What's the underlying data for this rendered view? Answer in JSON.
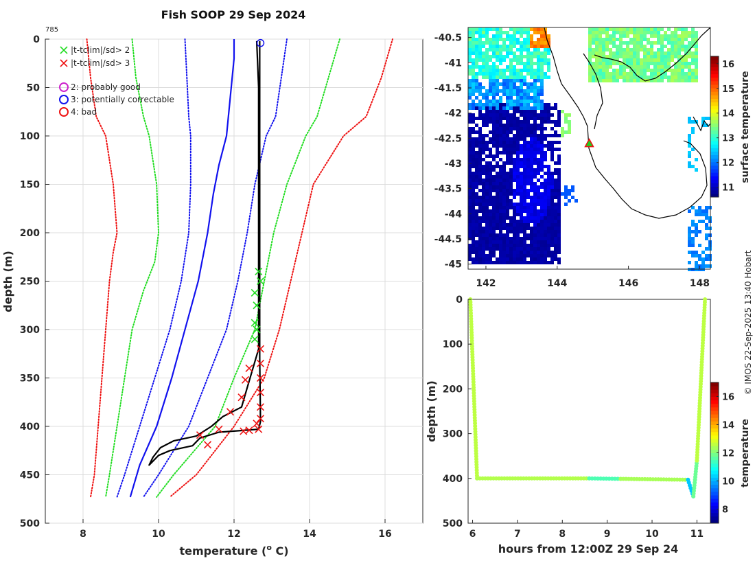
{
  "title": "Fish SOOP 29 Sep 2024",
  "profile_id": "785",
  "credit": "© IMOS 22-Sep-2025 13:40 Hobart",
  "legend": [
    {
      "marker": "x",
      "color": "#22dd22",
      "label": "|t-tclim|/sd> 2"
    },
    {
      "marker": "x",
      "color": "#ee1111",
      "label": "|t-tclim|/sd> 3"
    },
    {
      "marker": "o",
      "color": "#cc22cc",
      "label": "2: probably good"
    },
    {
      "marker": "o",
      "color": "#1111ee",
      "label": "3: potentially correctable"
    },
    {
      "marker": "o",
      "color": "#ee1111",
      "label": "4: bad"
    }
  ],
  "chart_data": [
    {
      "type": "line",
      "name": "profile",
      "xlabel": "temperature (",
      "xlabel_sup": "o",
      "xlabel_end": " C)",
      "ylabel": "depth (m)",
      "xlim": [
        7,
        17
      ],
      "ylim": [
        0,
        500
      ],
      "y_reversed": true,
      "xticks": [
        "8",
        "10",
        "12",
        "14",
        "16"
      ],
      "yticks": [
        "0",
        "50",
        "100",
        "150",
        "200",
        "250",
        "300",
        "350",
        "400",
        "450",
        "500"
      ],
      "grid": true,
      "series": [
        {
          "name": "climatology -3sd",
          "color": "#ee1111",
          "style": "dotted",
          "points": [
            [
              8.1,
              0
            ],
            [
              8.2,
              40
            ],
            [
              8.35,
              80
            ],
            [
              8.6,
              100
            ],
            [
              8.8,
              150
            ],
            [
              8.9,
              200
            ],
            [
              8.8,
              220
            ],
            [
              8.7,
              250
            ],
            [
              8.6,
              300
            ],
            [
              8.5,
              350
            ],
            [
              8.4,
              400
            ],
            [
              8.3,
              450
            ],
            [
              8.2,
              473
            ]
          ]
        },
        {
          "name": "climatology -2sd",
          "color": "#22dd22",
          "style": "dotted",
          "points": [
            [
              9.3,
              0
            ],
            [
              9.4,
              40
            ],
            [
              9.6,
              80
            ],
            [
              9.75,
              100
            ],
            [
              9.95,
              150
            ],
            [
              10.0,
              200
            ],
            [
              9.9,
              230
            ],
            [
              9.6,
              260
            ],
            [
              9.3,
              300
            ],
            [
              9.1,
              350
            ],
            [
              8.9,
              400
            ],
            [
              8.7,
              450
            ],
            [
              8.6,
              473
            ]
          ]
        },
        {
          "name": "climatology -1sd",
          "color": "#1111ee",
          "style": "dotted",
          "points": [
            [
              10.7,
              0
            ],
            [
              10.75,
              40
            ],
            [
              10.8,
              80
            ],
            [
              10.85,
              100
            ],
            [
              10.85,
              150
            ],
            [
              10.8,
              200
            ],
            [
              10.6,
              250
            ],
            [
              10.3,
              300
            ],
            [
              9.9,
              350
            ],
            [
              9.5,
              400
            ],
            [
              9.1,
              450
            ],
            [
              8.9,
              473
            ]
          ]
        },
        {
          "name": "climatology mean",
          "color": "#1111ee",
          "style": "solid",
          "points": [
            [
              12.0,
              0
            ],
            [
              12.0,
              20
            ],
            [
              11.9,
              60
            ],
            [
              11.8,
              100
            ],
            [
              11.6,
              130
            ],
            [
              11.45,
              160
            ],
            [
              11.3,
              200
            ],
            [
              11.05,
              250
            ],
            [
              10.7,
              300
            ],
            [
              10.35,
              350
            ],
            [
              9.95,
              400
            ],
            [
              9.5,
              440
            ],
            [
              9.25,
              473
            ]
          ]
        },
        {
          "name": "climatology +1sd",
          "color": "#1111ee",
          "style": "dotted",
          "points": [
            [
              13.4,
              0
            ],
            [
              13.25,
              40
            ],
            [
              13.1,
              80
            ],
            [
              12.85,
              100
            ],
            [
              12.55,
              150
            ],
            [
              12.35,
              200
            ],
            [
              12.1,
              250
            ],
            [
              11.8,
              300
            ],
            [
              11.3,
              350
            ],
            [
              10.8,
              400
            ],
            [
              10.0,
              450
            ],
            [
              9.6,
              473
            ]
          ]
        },
        {
          "name": "climatology +2sd",
          "color": "#22dd22",
          "style": "dotted",
          "points": [
            [
              14.8,
              0
            ],
            [
              14.5,
              40
            ],
            [
              14.2,
              80
            ],
            [
              13.9,
              100
            ],
            [
              13.4,
              150
            ],
            [
              13.05,
              200
            ],
            [
              12.8,
              250
            ],
            [
              12.55,
              300
            ],
            [
              12.0,
              350
            ],
            [
              11.5,
              400
            ],
            [
              10.4,
              450
            ],
            [
              9.95,
              473
            ]
          ]
        },
        {
          "name": "climatology +3sd",
          "color": "#ee1111",
          "style": "dotted",
          "points": [
            [
              16.2,
              0
            ],
            [
              15.9,
              40
            ],
            [
              15.5,
              80
            ],
            [
              14.9,
              100
            ],
            [
              14.1,
              150
            ],
            [
              13.8,
              200
            ],
            [
              13.5,
              250
            ],
            [
              13.2,
              300
            ],
            [
              12.8,
              350
            ],
            [
              12.0,
              400
            ],
            [
              11.0,
              450
            ],
            [
              10.3,
              473
            ]
          ]
        },
        {
          "name": "measured",
          "color": "#000000",
          "style": "solid",
          "points": [
            [
              12.6,
              2
            ],
            [
              12.65,
              50
            ],
            [
              12.65,
              100
            ],
            [
              12.65,
              200
            ],
            [
              12.65,
              300
            ],
            [
              12.65,
              320
            ],
            [
              12.5,
              340
            ],
            [
              12.35,
              360
            ],
            [
              12.2,
              380
            ],
            [
              11.7,
              390
            ],
            [
              11.4,
              400
            ],
            [
              11.0,
              410
            ],
            [
              10.4,
              415
            ],
            [
              10.05,
              422
            ],
            [
              9.85,
              432
            ],
            [
              9.75,
              440
            ],
            [
              10.0,
              430
            ],
            [
              10.3,
              425
            ],
            [
              10.9,
              420
            ],
            [
              11.1,
              412
            ],
            [
              11.6,
              406
            ],
            [
              12.3,
              404
            ],
            [
              12.65,
              403
            ],
            [
              12.7,
              395
            ],
            [
              12.68,
              330
            ],
            [
              12.68,
              50
            ],
            [
              12.68,
              2
            ]
          ]
        }
      ],
      "flags": {
        "green_x": [
          [
            12.65,
            240
          ],
          [
            12.7,
            250
          ],
          [
            12.55,
            262
          ],
          [
            12.6,
            275
          ],
          [
            12.55,
            293
          ],
          [
            12.6,
            300
          ],
          [
            12.55,
            310
          ]
        ],
        "red_x": [
          [
            12.7,
            320
          ],
          [
            12.7,
            335
          ],
          [
            12.7,
            350
          ],
          [
            12.7,
            365
          ],
          [
            12.7,
            380
          ],
          [
            12.7,
            392
          ],
          [
            12.65,
            403
          ],
          [
            12.25,
            405
          ],
          [
            11.6,
            403
          ],
          [
            11.1,
            409
          ],
          [
            11.3,
            419
          ],
          [
            12.4,
            404
          ],
          [
            12.6,
            397
          ],
          [
            12.4,
            340
          ],
          [
            12.3,
            352
          ],
          [
            12.2,
            370
          ],
          [
            11.9,
            385
          ]
        ],
        "blue_o": [
          [
            12.7,
            4
          ]
        ]
      }
    },
    {
      "type": "heatmap",
      "name": "surface temperature map",
      "xlim": [
        141.5,
        148.3
      ],
      "ylim": [
        -45.1,
        -40.3
      ],
      "xticks": [
        "142",
        "144",
        "146",
        "148"
      ],
      "yticks": [
        "-40.5",
        "-41",
        "-41.5",
        "-42",
        "-42.5",
        "-43",
        "-43.5",
        "-44",
        "-44.5",
        "-45"
      ],
      "colorbar_label": "surface temperature",
      "colorbar_ticks": [
        "11",
        "12",
        "13",
        "14",
        "15",
        "16"
      ],
      "colorbar_range": [
        10.6,
        16.3
      ],
      "marker": {
        "lon": 144.9,
        "lat": -42.6,
        "shape": "triangle"
      }
    },
    {
      "type": "scatter",
      "name": "depth vs time",
      "xlabel": "hours from 12:00Z 29 Sep 24",
      "ylabel": "depth (m)",
      "xlim": [
        5.9,
        11.3
      ],
      "ylim": [
        0,
        500
      ],
      "y_reversed": true,
      "xticks": [
        "6",
        "7",
        "8",
        "9",
        "10",
        "11"
      ],
      "yticks": [
        "0",
        "100",
        "200",
        "300",
        "400",
        "500"
      ],
      "colorbar_label": "temperature",
      "colorbar_ticks": [
        "8",
        "10",
        "12",
        "14",
        "16"
      ],
      "colorbar_range": [
        7,
        17
      ],
      "segments": [
        {
          "t0": 5.95,
          "t1": 6.1,
          "d0": 0,
          "d1": 400,
          "temp": 12.6
        },
        {
          "t0": 6.1,
          "t1": 8.6,
          "d0": 400,
          "d1": 400,
          "temp": 12.5
        },
        {
          "t0": 8.6,
          "t1": 9.3,
          "d0": 400,
          "d1": 401,
          "temp": 11.5
        },
        {
          "t0": 9.3,
          "t1": 10.8,
          "d0": 401,
          "d1": 403,
          "temp": 12.4
        },
        {
          "t0": 10.8,
          "t1": 10.92,
          "d0": 403,
          "d1": 440,
          "temp": 10.2
        },
        {
          "t0": 10.92,
          "t1": 11.0,
          "d0": 440,
          "d1": 360,
          "temp": 11.8
        },
        {
          "t0": 11.0,
          "t1": 11.18,
          "d0": 360,
          "d1": 0,
          "temp": 12.6
        }
      ]
    }
  ]
}
